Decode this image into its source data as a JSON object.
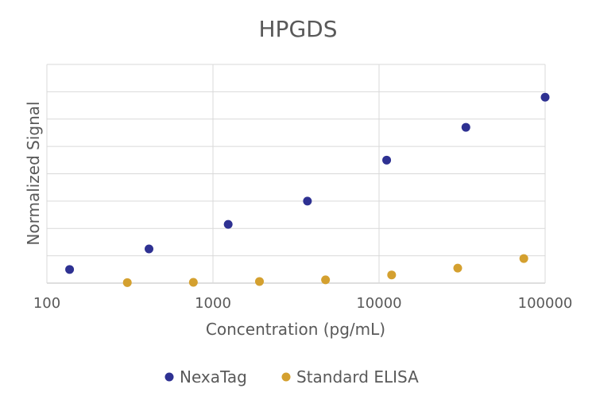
{
  "chart_data": {
    "type": "scatter",
    "title": "HPGDS",
    "xlabel": "Concentration (pg/mL)",
    "ylabel": "Normalized Signal",
    "x_scale": "log",
    "xlim": [
      100,
      100000
    ],
    "x_ticks": [
      "100",
      "1000",
      "10000",
      "100000"
    ],
    "ylim": [
      0,
      8
    ],
    "y_tick_labels_shown": false,
    "grid": true,
    "legend_position": "bottom",
    "series": [
      {
        "name": "NexaTag",
        "color": "#2e3192",
        "points": [
          {
            "x": 137,
            "y": 0.5
          },
          {
            "x": 412,
            "y": 1.25
          },
          {
            "x": 1235,
            "y": 2.15
          },
          {
            "x": 3704,
            "y": 3.0
          },
          {
            "x": 11111,
            "y": 4.5
          },
          {
            "x": 33333,
            "y": 5.7
          },
          {
            "x": 100000,
            "y": 6.8
          }
        ]
      },
      {
        "name": "Standard ELISA",
        "color": "#d4a02f",
        "points": [
          {
            "x": 305,
            "y": 0.02
          },
          {
            "x": 762,
            "y": 0.03
          },
          {
            "x": 1905,
            "y": 0.06
          },
          {
            "x": 4762,
            "y": 0.12
          },
          {
            "x": 11905,
            "y": 0.3
          },
          {
            "x": 29762,
            "y": 0.55
          },
          {
            "x": 74405,
            "y": 0.9
          }
        ]
      }
    ]
  }
}
